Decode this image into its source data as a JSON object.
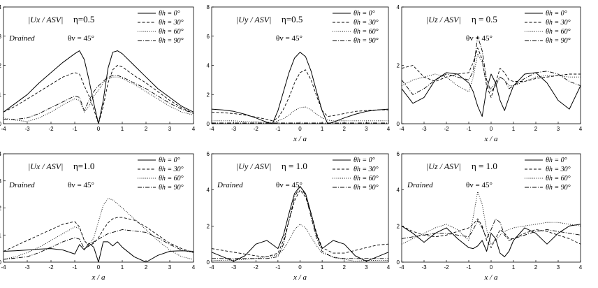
{
  "series_styles": [
    {
      "name": "θh = 0°",
      "dash": "",
      "width": 1.0
    },
    {
      "name": "θh = 30°",
      "dash": "4,2.5",
      "width": 0.9
    },
    {
      "name": "θh = 60°",
      "dash": "1,1.8",
      "width": 0.9
    },
    {
      "name": "θh = 90°",
      "dash": "6,2,1,2",
      "width": 0.9
    }
  ],
  "chart_data": [
    {
      "type": "line",
      "ylabel": "|Ux / ASV|",
      "eta": "η=0.5",
      "condition": "Drained",
      "theta_v": "θv = 45°",
      "xlabel": "",
      "xlim": [
        -4,
        4
      ],
      "ylim": [
        0,
        4
      ],
      "xticks": [
        -4,
        -3,
        -2,
        -1,
        0,
        1,
        2,
        3,
        4
      ],
      "yticks": [
        0,
        1,
        2,
        3,
        4
      ],
      "legend_position": "top-right",
      "x": [
        -4,
        -3.5,
        -3,
        -2.5,
        -2,
        -1.5,
        -1,
        -0.8,
        -0.6,
        -0.4,
        -0.2,
        0,
        0.2,
        0.4,
        0.6,
        0.8,
        1,
        1.5,
        2,
        2.5,
        3,
        3.5,
        4
      ],
      "series": [
        {
          "name": "θh = 0°",
          "values": [
            0.4,
            0.7,
            1.0,
            1.4,
            1.75,
            2.1,
            2.4,
            2.5,
            2.2,
            1.5,
            0.7,
            0.0,
            0.8,
            1.9,
            2.45,
            2.5,
            2.4,
            2.0,
            1.6,
            1.2,
            0.9,
            0.6,
            0.4
          ]
        },
        {
          "name": "θh = 30°",
          "values": [
            0.4,
            0.6,
            0.85,
            1.1,
            1.35,
            1.6,
            1.75,
            1.7,
            1.3,
            0.95,
            0.5,
            0.0,
            0.6,
            1.4,
            1.85,
            2.0,
            1.95,
            1.65,
            1.4,
            1.1,
            0.8,
            0.55,
            0.35
          ]
        },
        {
          "name": "θh = 60°",
          "values": [
            0.2,
            0.12,
            0.08,
            0.2,
            0.4,
            0.65,
            0.85,
            0.8,
            0.4,
            0.6,
            0.95,
            1.15,
            1.4,
            1.55,
            1.6,
            1.6,
            1.55,
            1.35,
            1.1,
            0.85,
            0.6,
            0.4,
            0.3
          ]
        },
        {
          "name": "θh = 90°",
          "values": [
            0.15,
            0.15,
            0.2,
            0.35,
            0.55,
            0.75,
            0.95,
            0.9,
            0.45,
            0.8,
            1.1,
            1.3,
            1.45,
            1.6,
            1.65,
            1.65,
            1.6,
            1.4,
            1.2,
            0.95,
            0.7,
            0.5,
            0.35
          ]
        }
      ]
    },
    {
      "type": "line",
      "ylabel": "|Uy / ASV|",
      "eta": "η=0.5",
      "condition": "",
      "theta_v": "θv = 45°",
      "xlabel": "x / a",
      "xlim": [
        -4,
        4
      ],
      "ylim": [
        0,
        8
      ],
      "xticks": [
        -4,
        -3,
        -2,
        -1,
        0,
        1,
        2,
        3,
        4
      ],
      "yticks": [
        0,
        2,
        4,
        6,
        8
      ],
      "legend_position": "top-right",
      "x": [
        -4,
        -3.5,
        -3,
        -2.5,
        -2,
        -1.5,
        -1.25,
        -1,
        -0.75,
        -0.5,
        -0.25,
        0,
        0.25,
        0.5,
        0.75,
        1,
        1.25,
        1.5,
        2,
        2.5,
        3,
        3.5,
        4
      ],
      "series": [
        {
          "name": "θh = 0°",
          "values": [
            1.0,
            0.95,
            0.85,
            0.65,
            0.4,
            0.1,
            0.0,
            0.9,
            2.2,
            3.5,
            4.5,
            4.9,
            4.6,
            3.6,
            2.2,
            0.9,
            0.0,
            0.1,
            0.4,
            0.65,
            0.85,
            0.95,
            1.0
          ]
        },
        {
          "name": "θh = 30°",
          "values": [
            0.8,
            0.75,
            0.7,
            0.6,
            0.45,
            0.3,
            0.2,
            0.4,
            1.0,
            1.8,
            2.8,
            3.5,
            3.7,
            3.0,
            1.9,
            0.9,
            0.5,
            0.55,
            0.7,
            0.85,
            0.9,
            0.95,
            0.95
          ]
        },
        {
          "name": "θh = 60°",
          "values": [
            0.2,
            0.2,
            0.2,
            0.15,
            0.12,
            0.1,
            0.1,
            0.2,
            0.35,
            0.6,
            0.9,
            1.1,
            1.15,
            0.95,
            0.65,
            0.4,
            0.25,
            0.2,
            0.2,
            0.2,
            0.2,
            0.2,
            0.2
          ]
        },
        {
          "name": "θh = 90°",
          "values": [
            0.05,
            0.05,
            0.05,
            0.05,
            0.05,
            0.05,
            0.05,
            0.05,
            0.05,
            0.05,
            0.05,
            0.05,
            0.05,
            0.05,
            0.05,
            0.05,
            0.05,
            0.05,
            0.05,
            0.05,
            0.05,
            0.05,
            0.05
          ]
        }
      ]
    },
    {
      "type": "line",
      "ylabel": "|Uz / ASV|",
      "eta": "η = 0.5",
      "condition": "",
      "theta_v": "θv = 45°",
      "xlabel": "x / a",
      "xlim": [
        -4,
        4
      ],
      "ylim": [
        0,
        4
      ],
      "xticks": [
        -4,
        -3,
        -2,
        -1,
        0,
        1,
        2,
        3,
        4
      ],
      "yticks": [
        0,
        2,
        4
      ],
      "legend_position": "top-right",
      "x": [
        -4,
        -3.5,
        -3,
        -2.5,
        -2,
        -1.5,
        -1,
        -0.8,
        -0.6,
        -0.4,
        -0.2,
        0,
        0.2,
        0.4,
        0.6,
        0.8,
        1,
        1.5,
        2,
        2.5,
        3,
        3.5,
        4
      ],
      "series": [
        {
          "name": "θh = 0°",
          "values": [
            1.2,
            0.7,
            0.9,
            1.5,
            1.75,
            1.7,
            1.4,
            1.1,
            0.6,
            0.25,
            1.2,
            1.7,
            1.4,
            0.8,
            0.45,
            0.9,
            1.3,
            1.7,
            1.75,
            1.4,
            0.8,
            0.5,
            1.3
          ]
        },
        {
          "name": "θh = 30°",
          "values": [
            1.9,
            2.0,
            1.6,
            1.45,
            1.6,
            1.7,
            1.75,
            2.1,
            2.6,
            2.2,
            1.3,
            0.9,
            1.4,
            1.9,
            1.75,
            1.5,
            1.45,
            1.45,
            1.55,
            1.6,
            1.65,
            1.7,
            1.7
          ]
        },
        {
          "name": "θh = 60°",
          "values": [
            1.3,
            1.5,
            1.6,
            1.7,
            1.6,
            1.3,
            1.1,
            1.6,
            2.4,
            2.1,
            1.3,
            1.2,
            1.4,
            1.6,
            1.5,
            1.3,
            1.3,
            1.45,
            1.6,
            1.65,
            1.65,
            1.6,
            1.6
          ]
        },
        {
          "name": "θh = 90°",
          "values": [
            1.5,
            1.0,
            1.2,
            1.5,
            1.7,
            1.6,
            1.5,
            1.8,
            3.0,
            2.5,
            1.5,
            1.1,
            1.3,
            1.6,
            1.5,
            1.2,
            1.3,
            1.55,
            1.75,
            1.8,
            1.7,
            1.45,
            1.3
          ]
        }
      ]
    },
    {
      "type": "line",
      "ylabel": "|Ux / ASV|",
      "eta": "η=1.0",
      "condition": "Drained",
      "theta_v": "θv = 45°",
      "xlabel": "x / a",
      "xlim": [
        -4,
        4
      ],
      "ylim": [
        0,
        4
      ],
      "xticks": [
        -4,
        -3,
        -2,
        -1,
        0,
        1,
        2,
        3,
        4
      ],
      "yticks": [
        0,
        1,
        2,
        3,
        4
      ],
      "legend_position": "top-right",
      "x": [
        -4,
        -3.5,
        -3,
        -2.5,
        -2,
        -1.5,
        -1,
        -0.8,
        -0.6,
        -0.4,
        -0.2,
        0,
        0.2,
        0.4,
        0.6,
        0.8,
        1,
        1.5,
        2,
        2.5,
        3,
        3.5,
        4
      ],
      "series": [
        {
          "name": "θh = 0°",
          "values": [
            0.4,
            0.42,
            0.45,
            0.48,
            0.5,
            0.45,
            0.3,
            0.65,
            0.45,
            0.7,
            0.55,
            0.0,
            0.75,
            0.75,
            0.6,
            0.75,
            0.55,
            0.2,
            0.0,
            0.25,
            0.4,
            0.42,
            0.4
          ]
        },
        {
          "name": "θh = 30°",
          "values": [
            0.4,
            0.6,
            0.8,
            1.0,
            1.2,
            1.4,
            1.5,
            1.3,
            0.8,
            0.6,
            0.7,
            0.9,
            1.2,
            1.45,
            1.6,
            1.65,
            1.65,
            1.55,
            1.3,
            1.0,
            0.7,
            0.5,
            0.35
          ]
        },
        {
          "name": "θh = 60°",
          "values": [
            0.1,
            0.2,
            0.35,
            0.55,
            0.8,
            1.05,
            1.3,
            1.25,
            0.8,
            0.6,
            0.9,
            1.5,
            2.1,
            2.35,
            2.3,
            2.15,
            2.0,
            1.6,
            1.2,
            0.8,
            0.45,
            0.2,
            0.1
          ]
        },
        {
          "name": "θh = 90°",
          "values": [
            0.1,
            0.15,
            0.2,
            0.35,
            0.55,
            0.75,
            0.9,
            0.85,
            0.5,
            0.6,
            0.75,
            0.85,
            0.95,
            1.05,
            1.1,
            1.15,
            1.2,
            1.15,
            1.1,
            0.9,
            0.65,
            0.45,
            0.35
          ]
        }
      ]
    },
    {
      "type": "line",
      "ylabel": "|Uy / ASV|",
      "eta": "η = 1.0",
      "condition": "Drained",
      "theta_v": "θv = 45°",
      "xlabel": "x / a",
      "xlim": [
        -4,
        4
      ],
      "ylim": [
        0,
        6
      ],
      "xticks": [
        -4,
        -3,
        -2,
        -1,
        0,
        1,
        2,
        3,
        4
      ],
      "yticks": [
        0,
        2,
        4,
        6
      ],
      "legend_position": "top-right",
      "x": [
        -4,
        -3.5,
        -3,
        -2.5,
        -2,
        -1.5,
        -1,
        -0.75,
        -0.5,
        -0.25,
        0,
        0.25,
        0.5,
        0.75,
        1,
        1.5,
        2,
        2.5,
        3,
        3.5,
        4
      ],
      "series": [
        {
          "name": "θh = 0°",
          "values": [
            0.55,
            0.3,
            0.05,
            0.35,
            1.0,
            1.2,
            0.75,
            1.5,
            2.7,
            3.8,
            4.2,
            3.8,
            2.7,
            1.5,
            0.75,
            1.2,
            1.0,
            0.35,
            0.05,
            0.3,
            0.55
          ]
        },
        {
          "name": "θh = 30°",
          "values": [
            0.75,
            0.65,
            0.55,
            0.45,
            0.35,
            0.3,
            0.5,
            1.2,
            2.3,
            3.4,
            4.0,
            3.6,
            2.7,
            1.6,
            0.8,
            0.5,
            0.5,
            0.65,
            0.8,
            0.95,
            1.0
          ]
        },
        {
          "name": "θh = 60°",
          "values": [
            0.1,
            0.1,
            0.12,
            0.15,
            0.2,
            0.3,
            0.4,
            0.7,
            1.2,
            1.8,
            2.1,
            1.9,
            1.4,
            0.9,
            0.5,
            0.3,
            0.15,
            0.05,
            0.1,
            0.1,
            0.1
          ]
        },
        {
          "name": "θh = 90°",
          "values": [
            0.2,
            0.2,
            0.2,
            0.2,
            0.2,
            0.2,
            0.3,
            1.0,
            2.3,
            3.6,
            4.2,
            3.7,
            2.5,
            1.3,
            0.6,
            0.25,
            0.2,
            0.2,
            0.2,
            0.2,
            0.2
          ]
        }
      ]
    },
    {
      "type": "line",
      "ylabel": "|Uz / ASV|",
      "eta": "η = 1.0",
      "condition": "Drained",
      "theta_v": "θv = 45°",
      "xlabel": "x / a",
      "xlim": [
        -4,
        4
      ],
      "ylim": [
        0,
        6
      ],
      "xticks": [
        -4,
        -3,
        -2,
        -1,
        0,
        1,
        2,
        3,
        4
      ],
      "yticks": [
        0,
        2,
        4,
        6
      ],
      "legend_position": "top-right",
      "x": [
        -4,
        -3.5,
        -3,
        -2.5,
        -2,
        -1.5,
        -1,
        -0.8,
        -0.6,
        -0.4,
        -0.2,
        0,
        0.2,
        0.4,
        0.6,
        0.8,
        1,
        1.5,
        2,
        2.5,
        3,
        3.5,
        4
      ],
      "series": [
        {
          "name": "θh = 0°",
          "values": [
            2.0,
            1.6,
            1.1,
            1.6,
            1.9,
            1.3,
            0.8,
            0.75,
            0.9,
            1.2,
            0.6,
            1.6,
            1.3,
            0.5,
            0.3,
            0.6,
            1.2,
            1.9,
            1.6,
            1.0,
            1.6,
            2.0,
            2.1
          ]
        },
        {
          "name": "θh = 30°",
          "values": [
            2.0,
            1.7,
            1.5,
            1.4,
            1.5,
            1.7,
            1.9,
            2.1,
            2.4,
            2.0,
            1.2,
            0.8,
            1.3,
            1.8,
            1.6,
            1.3,
            1.3,
            1.6,
            1.8,
            1.7,
            1.5,
            1.3,
            1.0
          ]
        },
        {
          "name": "θh = 60°",
          "values": [
            1.0,
            1.3,
            1.6,
            1.9,
            2.1,
            1.8,
            1.2,
            2.5,
            3.9,
            3.2,
            1.8,
            1.0,
            1.2,
            1.5,
            1.7,
            1.8,
            1.9,
            2.0,
            2.1,
            2.2,
            2.2,
            2.1,
            2.0
          ]
        },
        {
          "name": "θh = 90°",
          "values": [
            1.3,
            1.4,
            1.5,
            1.6,
            1.6,
            1.5,
            1.4,
            1.8,
            2.3,
            1.9,
            1.3,
            1.8,
            2.4,
            2.2,
            1.5,
            1.2,
            1.3,
            1.5,
            1.7,
            1.8,
            1.7,
            1.6,
            1.5
          ]
        }
      ]
    }
  ]
}
